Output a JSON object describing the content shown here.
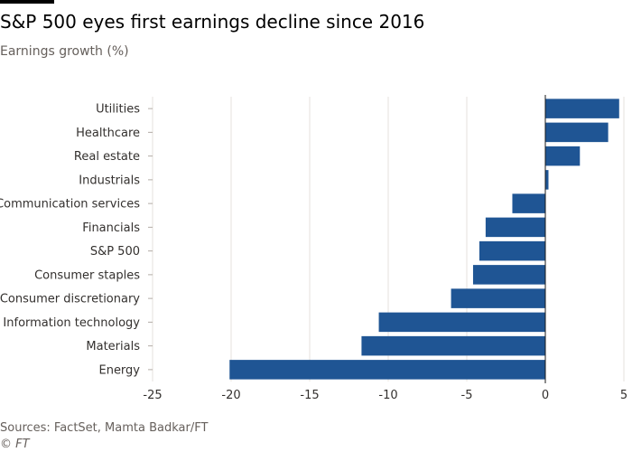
{
  "header": {
    "title": "S&P 500 eyes first earnings decline since 2016",
    "subtitle": "Earnings growth (%)"
  },
  "footer": {
    "source": "Sources: FactSet, Mamta Badkar/FT",
    "credit": "© FT"
  },
  "colors": {
    "bar": "#1f5594",
    "grid": "#e6e1dc",
    "zero_line": "#1a1a1a",
    "text": "#33302e"
  },
  "chart_data": {
    "type": "bar",
    "orientation": "horizontal",
    "title": "S&P 500 eyes first earnings decline since 2016",
    "subtitle": "Earnings growth (%)",
    "categories": [
      "Utilities",
      "Healthcare",
      "Real estate",
      "Industrials",
      "Communication services",
      "Financials",
      "S&P 500",
      "Consumer staples",
      "Consumer discretionary",
      "Information technology",
      "Materials",
      "Energy"
    ],
    "values": [
      4.7,
      4.0,
      2.2,
      0.2,
      -2.1,
      -3.8,
      -4.2,
      -4.6,
      -6.0,
      -10.6,
      -11.7,
      -20.1
    ],
    "xlim": [
      -25,
      5
    ],
    "x_ticks": [
      -25,
      -20,
      -15,
      -10,
      -5,
      0,
      5
    ],
    "grid": "vertical",
    "xlabel": "",
    "ylabel": ""
  }
}
